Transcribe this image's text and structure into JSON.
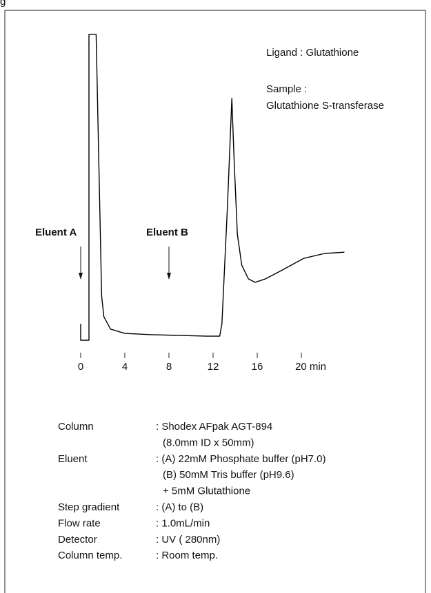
{
  "chart_data": {
    "type": "line",
    "figure_label": "g",
    "notes": [
      "Ligand : Glutathione",
      "Sample :",
      "Glutathione S-transferase"
    ],
    "annotations": [
      {
        "text": "Eluent A",
        "x": 0
      },
      {
        "text": "Eluent B",
        "x": 8
      }
    ],
    "x": [
      0,
      0,
      0.75,
      0.75,
      1.4,
      1.9,
      2.1,
      2.7,
      4,
      6.4,
      11.4,
      12.6,
      12.8,
      13.3,
      13.7,
      13.9,
      14.2,
      14.6,
      15.2,
      15.8,
      16.75,
      18.3,
      20.2,
      22.1,
      23.9
    ],
    "values": [
      5.3,
      0,
      0,
      98.7,
      98.7,
      14.2,
      7.6,
      3.6,
      2.2,
      1.8,
      1.3,
      1.3,
      5.3,
      43.1,
      78,
      58.7,
      34.2,
      24.2,
      19.8,
      18.7,
      19.8,
      22.7,
      26.4,
      28,
      28.4
    ],
    "color": "#000000",
    "xlim": [
      0,
      24
    ],
    "ylim": [
      0,
      100
    ],
    "xticks": [
      0,
      4,
      8,
      12,
      16,
      {
        "value": 20,
        "label": "20 min"
      }
    ],
    "conditions": [
      {
        "label": "Column",
        "lines": [
          ": Shodex AFpak AGT-894",
          "(8.0mm ID x 50mm)"
        ]
      },
      {
        "label": "Eluent",
        "lines": [
          ": (A) 22mM Phosphate buffer (pH7.0)",
          "(B) 50mM Tris buffer (pH9.6)",
          "+ 5mM Glutathione"
        ]
      },
      {
        "label": "Step gradient",
        "lines": [
          ": (A) to (B)"
        ]
      },
      {
        "label": "Flow rate",
        "lines": [
          ": 1.0mL/min"
        ]
      },
      {
        "label": "Detector",
        "lines": [
          ": UV ( 280nm)"
        ]
      },
      {
        "label": "Column temp.",
        "lines": [
          ": Room temp."
        ]
      }
    ]
  }
}
